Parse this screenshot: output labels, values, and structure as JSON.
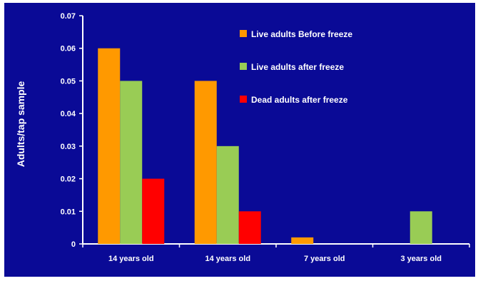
{
  "chart_data": {
    "type": "bar",
    "background_color": "#0a0a96",
    "ylabel": "Adults/tap sample",
    "xlabel": "",
    "ylim": [
      0,
      0.07
    ],
    "yticks": [
      "0",
      "0.01",
      "0.02",
      "0.03",
      "0.04",
      "0.05",
      "0.06",
      "0.07"
    ],
    "grid": false,
    "legend_position": "top-right",
    "categories": [
      "14 years old",
      "14 years old",
      "7 years old",
      "3 years old"
    ],
    "series": [
      {
        "name": "Live adults Before freeze",
        "color": "#ff9900",
        "values": [
          0.06,
          0.05,
          0.002,
          0
        ]
      },
      {
        "name": "Live adults after freeze",
        "color": "#99cc55",
        "values": [
          0.05,
          0.03,
          0,
          0.01
        ]
      },
      {
        "name": "Dead adults after freeze",
        "color": "#ff0000",
        "values": [
          0.02,
          0.01,
          0,
          0
        ]
      }
    ]
  }
}
